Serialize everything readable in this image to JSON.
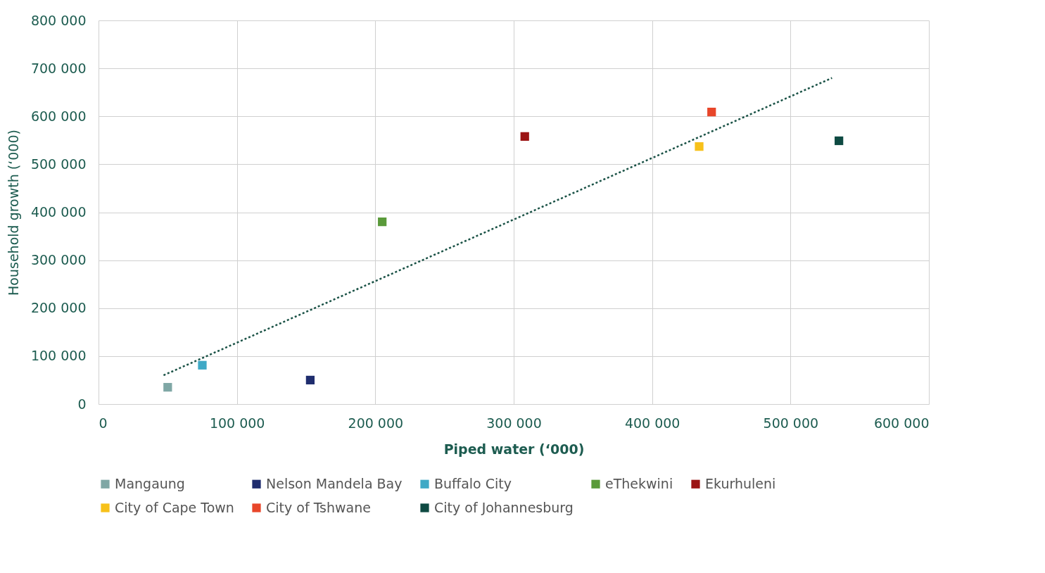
{
  "chart_data": {
    "type": "scatter",
    "xlabel": "Piped water (‘000)",
    "ylabel": "Household growth (‘000)",
    "xlim": [
      0,
      600000
    ],
    "xticks": [
      {
        "value": 0,
        "label": "0"
      },
      {
        "value": 100000,
        "label": "100 000"
      },
      {
        "value": 200000,
        "label": "200 000"
      },
      {
        "value": 300000,
        "label": "300 000"
      },
      {
        "value": 400000,
        "label": "400 000"
      },
      {
        "value": 500000,
        "label": "500 000"
      },
      {
        "value": 600000,
        "label": "600 000"
      }
    ],
    "ylim": [
      0,
      800000
    ],
    "yticks": [
      {
        "value": 0,
        "label": "0"
      },
      {
        "value": 100000,
        "label": "100 000"
      },
      {
        "value": 200000,
        "label": "200 000"
      },
      {
        "value": 300000,
        "label": "300 000"
      },
      {
        "value": 400000,
        "label": "400 000"
      },
      {
        "value": 500000,
        "label": "500 000"
      },
      {
        "value": 600000,
        "label": "600 000"
      },
      {
        "value": 700000,
        "label": "700 000"
      },
      {
        "value": 800000,
        "label": "800 000"
      }
    ],
    "grid": true,
    "legend": "bottom",
    "marker": "square",
    "series": [
      {
        "name": "Mangaung",
        "color": "#7fa7a5",
        "x": [
          50000
        ],
        "values": [
          35000
        ]
      },
      {
        "name": "Nelson Mandela Bay",
        "color": "#1f2d6e",
        "x": [
          153000
        ],
        "values": [
          50000
        ]
      },
      {
        "name": "Buffalo City",
        "color": "#3fa9c6",
        "x": [
          75000
        ],
        "values": [
          81000
        ]
      },
      {
        "name": "eThekwini",
        "color": "#5a9a3a",
        "x": [
          205000
        ],
        "values": [
          380000
        ]
      },
      {
        "name": "Ekurhuleni",
        "color": "#9b1414",
        "x": [
          308000
        ],
        "values": [
          558000
        ]
      },
      {
        "name": "City of Cape Town",
        "color": "#f7c11a",
        "x": [
          434000
        ],
        "values": [
          537000
        ]
      },
      {
        "name": "City of Tshwane",
        "color": "#e8462a",
        "x": [
          443000
        ],
        "values": [
          609000
        ]
      },
      {
        "name": "City of Johannesburg",
        "color": "#0e4a42",
        "x": [
          535000
        ],
        "values": [
          549000
        ]
      },
      {
        "type": "line",
        "marker": "none",
        "color": "#1a5246",
        "line_style": "dotted",
        "x": [
          47000,
          530000
        ],
        "values": [
          60000,
          680000
        ]
      }
    ]
  }
}
